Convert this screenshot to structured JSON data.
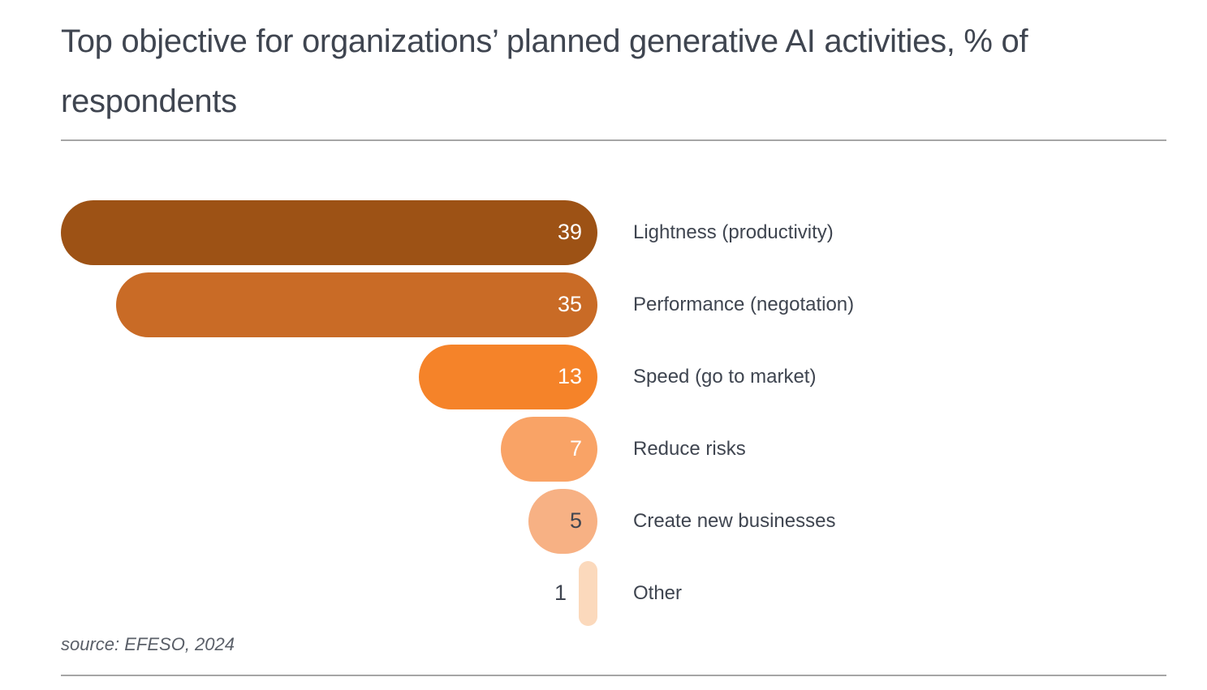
{
  "title": "Top objective for organizations’ planned generative AI activities, % of respondents",
  "source_note": "source: EFESO, 2024",
  "colors": {
    "title_text": "#3f4550",
    "label_text": "#3f4550",
    "value_text_light": "#ffffff",
    "value_text_dark": "#3f4550",
    "source_text": "#5a5f68",
    "divider": "#a6a6a6",
    "background": "#ffffff"
  },
  "chart_data": {
    "type": "bar",
    "orientation": "horizontal",
    "title": "Top objective for organizations’ planned generative AI activities, % of respondents",
    "categories": [
      "Lightness (productivity)",
      "Performance (negotation)",
      "Speed (go to market)",
      "Reduce risks",
      "Create new businesses",
      "Other"
    ],
    "values": [
      39,
      35,
      13,
      7,
      5,
      1
    ],
    "bar_colors": [
      "#9d5215",
      "#c96b26",
      "#f58329",
      "#f9a366",
      "#f7b184",
      "#fbd9bc"
    ],
    "value_label_styles": [
      "inside-light",
      "inside-light",
      "inside-light",
      "inside-light",
      "inside-dark",
      "outside-dark"
    ],
    "xlabel": "",
    "ylabel": "",
    "xlim": [
      0,
      39
    ],
    "grid": false,
    "legend": false,
    "value_labels_shown": true,
    "bars_right_aligned": true
  }
}
